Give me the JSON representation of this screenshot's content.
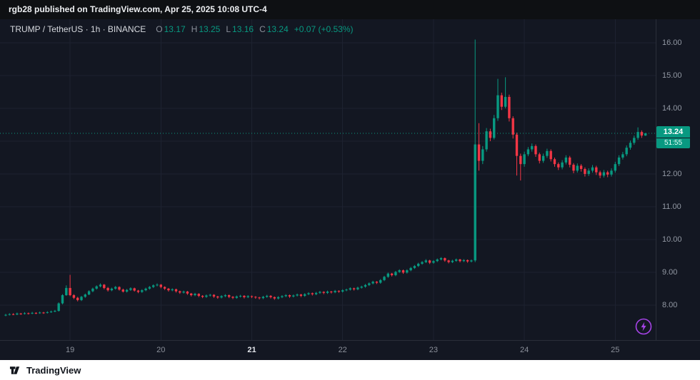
{
  "header": {
    "text": "rgb28 published on TradingView.com, Apr 25, 2025 10:08 UTC-4"
  },
  "legend": {
    "title": "TRUMP / TetherUS · 1h · BINANCE",
    "ohlc": [
      {
        "k": "O",
        "v": "13.17"
      },
      {
        "k": "H",
        "v": "13.25"
      },
      {
        "k": "L",
        "v": "13.16"
      },
      {
        "k": "C",
        "v": "13.24"
      }
    ],
    "change": "+0.07 (+0.53%)"
  },
  "price_axis": {
    "labels": [
      "16.00",
      "15.00",
      "14.00",
      "12.00",
      "11.00",
      "10.00",
      "9.00",
      "8.00"
    ],
    "badge": {
      "price": "13.24",
      "countdown": "51:55"
    }
  },
  "footer": {
    "brand": "TradingView"
  },
  "colors": {
    "up": "#089981",
    "down": "#f23645",
    "flash": "#a743e8",
    "grid": "#1d2230"
  },
  "chart_data": {
    "type": "candlestick",
    "title": "TRUMP / TetherUS · 1h · BINANCE",
    "interval": "1h",
    "ylim": [
      6.93,
      16.72
    ],
    "y_ticks": [
      8,
      9,
      10,
      11,
      12,
      13,
      14,
      15,
      16
    ],
    "x_ticks": [
      {
        "label": "19",
        "i": 17,
        "emphasis": false
      },
      {
        "label": "20",
        "i": 41,
        "emphasis": false
      },
      {
        "label": "21",
        "i": 65,
        "emphasis": true
      },
      {
        "label": "22",
        "i": 89,
        "emphasis": false
      },
      {
        "label": "23",
        "i": 113,
        "emphasis": false
      },
      {
        "label": "24",
        "i": 137,
        "emphasis": false
      },
      {
        "label": "25",
        "i": 161,
        "emphasis": false
      }
    ],
    "last_price": 13.24,
    "candles": [
      [
        7.68,
        7.73,
        7.66,
        7.7
      ],
      [
        7.7,
        7.75,
        7.68,
        7.72
      ],
      [
        7.72,
        7.75,
        7.69,
        7.71
      ],
      [
        7.71,
        7.77,
        7.69,
        7.74
      ],
      [
        7.74,
        7.76,
        7.7,
        7.73
      ],
      [
        7.73,
        7.78,
        7.71,
        7.75
      ],
      [
        7.75,
        7.77,
        7.71,
        7.74
      ],
      [
        7.74,
        7.79,
        7.72,
        7.76
      ],
      [
        7.76,
        7.78,
        7.72,
        7.75
      ],
      [
        7.75,
        7.8,
        7.73,
        7.77
      ],
      [
        7.77,
        7.79,
        7.73,
        7.76
      ],
      [
        7.76,
        7.81,
        7.74,
        7.78
      ],
      [
        7.78,
        7.83,
        7.76,
        7.8
      ],
      [
        7.8,
        7.85,
        7.78,
        7.82
      ],
      [
        7.82,
        8.08,
        7.8,
        8.05
      ],
      [
        8.05,
        8.33,
        8.02,
        8.3
      ],
      [
        8.3,
        8.6,
        8.28,
        8.52
      ],
      [
        8.52,
        8.92,
        8.27,
        8.3
      ],
      [
        8.3,
        8.33,
        8.18,
        8.22
      ],
      [
        8.22,
        8.25,
        8.11,
        8.15
      ],
      [
        8.15,
        8.28,
        8.12,
        8.25
      ],
      [
        8.25,
        8.35,
        8.22,
        8.32
      ],
      [
        8.32,
        8.45,
        8.3,
        8.42
      ],
      [
        8.42,
        8.53,
        8.39,
        8.5
      ],
      [
        8.5,
        8.6,
        8.47,
        8.57
      ],
      [
        8.57,
        8.66,
        8.54,
        8.62
      ],
      [
        8.62,
        8.64,
        8.48,
        8.52
      ],
      [
        8.52,
        8.55,
        8.41,
        8.45
      ],
      [
        8.45,
        8.53,
        8.42,
        8.5
      ],
      [
        8.5,
        8.58,
        8.47,
        8.55
      ],
      [
        8.55,
        8.57,
        8.44,
        8.47
      ],
      [
        8.47,
        8.5,
        8.38,
        8.41
      ],
      [
        8.41,
        8.49,
        8.38,
        8.46
      ],
      [
        8.46,
        8.54,
        8.43,
        8.51
      ],
      [
        8.51,
        8.53,
        8.41,
        8.44
      ],
      [
        8.44,
        8.46,
        8.36,
        8.4
      ],
      [
        8.4,
        8.48,
        8.37,
        8.45
      ],
      [
        8.45,
        8.53,
        8.42,
        8.5
      ],
      [
        8.5,
        8.58,
        8.47,
        8.55
      ],
      [
        8.55,
        8.63,
        8.52,
        8.6
      ],
      [
        8.6,
        8.66,
        8.57,
        8.62
      ],
      [
        8.62,
        8.64,
        8.51,
        8.55
      ],
      [
        8.55,
        8.57,
        8.46,
        8.5
      ],
      [
        8.5,
        8.52,
        8.41,
        8.45
      ],
      [
        8.45,
        8.51,
        8.42,
        8.48
      ],
      [
        8.48,
        8.5,
        8.38,
        8.42
      ],
      [
        8.42,
        8.44,
        8.34,
        8.38
      ],
      [
        8.38,
        8.44,
        8.35,
        8.41
      ],
      [
        8.41,
        8.43,
        8.31,
        8.35
      ],
      [
        8.35,
        8.37,
        8.26,
        8.3
      ],
      [
        8.3,
        8.37,
        8.27,
        8.34
      ],
      [
        8.34,
        8.36,
        8.24,
        8.28
      ],
      [
        8.28,
        8.3,
        8.21,
        8.25
      ],
      [
        8.25,
        8.32,
        8.22,
        8.29
      ],
      [
        8.29,
        8.34,
        8.26,
        8.31
      ],
      [
        8.31,
        8.33,
        8.22,
        8.26
      ],
      [
        8.26,
        8.28,
        8.19,
        8.23
      ],
      [
        8.23,
        8.3,
        8.2,
        8.27
      ],
      [
        8.27,
        8.33,
        8.24,
        8.3
      ],
      [
        8.3,
        8.32,
        8.21,
        8.25
      ],
      [
        8.25,
        8.27,
        8.18,
        8.22
      ],
      [
        8.22,
        8.29,
        8.19,
        8.26
      ],
      [
        8.26,
        8.31,
        8.23,
        8.28
      ],
      [
        8.28,
        8.3,
        8.2,
        8.24
      ],
      [
        8.24,
        8.3,
        8.21,
        8.27
      ],
      [
        8.27,
        8.29,
        8.21,
        8.25
      ],
      [
        8.25,
        8.27,
        8.19,
        8.23
      ],
      [
        8.23,
        8.25,
        8.17,
        8.21
      ],
      [
        8.21,
        8.28,
        8.18,
        8.25
      ],
      [
        8.25,
        8.31,
        8.22,
        8.28
      ],
      [
        8.28,
        8.3,
        8.2,
        8.24
      ],
      [
        8.24,
        8.26,
        8.16,
        8.2
      ],
      [
        8.2,
        8.27,
        8.17,
        8.24
      ],
      [
        8.24,
        8.3,
        8.21,
        8.27
      ],
      [
        8.27,
        8.33,
        8.24,
        8.3
      ],
      [
        8.3,
        8.32,
        8.22,
        8.26
      ],
      [
        8.26,
        8.32,
        8.23,
        8.29
      ],
      [
        8.29,
        8.35,
        8.26,
        8.32
      ],
      [
        8.32,
        8.34,
        8.24,
        8.28
      ],
      [
        8.28,
        8.36,
        8.25,
        8.33
      ],
      [
        8.33,
        8.39,
        8.3,
        8.36
      ],
      [
        8.36,
        8.38,
        8.29,
        8.33
      ],
      [
        8.33,
        8.4,
        8.3,
        8.37
      ],
      [
        8.37,
        8.43,
        8.34,
        8.4
      ],
      [
        8.4,
        8.42,
        8.33,
        8.37
      ],
      [
        8.37,
        8.44,
        8.34,
        8.41
      ],
      [
        8.41,
        8.43,
        8.35,
        8.39
      ],
      [
        8.39,
        8.46,
        8.36,
        8.43
      ],
      [
        8.43,
        8.45,
        8.37,
        8.41
      ],
      [
        8.41,
        8.48,
        8.38,
        8.45
      ],
      [
        8.45,
        8.5,
        8.42,
        8.47
      ],
      [
        8.47,
        8.54,
        8.44,
        8.51
      ],
      [
        8.51,
        8.53,
        8.44,
        8.48
      ],
      [
        8.48,
        8.56,
        8.45,
        8.53
      ],
      [
        8.53,
        8.59,
        8.5,
        8.56
      ],
      [
        8.56,
        8.64,
        8.53,
        8.61
      ],
      [
        8.61,
        8.69,
        8.58,
        8.66
      ],
      [
        8.66,
        8.74,
        8.63,
        8.71
      ],
      [
        8.71,
        8.73,
        8.64,
        8.68
      ],
      [
        8.68,
        8.79,
        8.65,
        8.76
      ],
      [
        8.76,
        8.89,
        8.73,
        8.86
      ],
      [
        8.86,
        8.99,
        8.83,
        8.96
      ],
      [
        8.96,
        8.98,
        8.87,
        8.91
      ],
      [
        8.91,
        9.04,
        8.88,
        9.01
      ],
      [
        9.01,
        9.09,
        8.98,
        9.06
      ],
      [
        9.06,
        9.08,
        8.95,
        8.99
      ],
      [
        8.99,
        9.09,
        8.96,
        9.06
      ],
      [
        9.06,
        9.16,
        9.03,
        9.13
      ],
      [
        9.13,
        9.22,
        9.1,
        9.19
      ],
      [
        9.19,
        9.29,
        9.16,
        9.26
      ],
      [
        9.26,
        9.34,
        9.23,
        9.31
      ],
      [
        9.31,
        9.4,
        9.28,
        9.36
      ],
      [
        9.36,
        9.38,
        9.25,
        9.29
      ],
      [
        9.29,
        9.37,
        9.26,
        9.34
      ],
      [
        9.34,
        9.42,
        9.31,
        9.39
      ],
      [
        9.39,
        9.46,
        9.36,
        9.43
      ],
      [
        9.43,
        9.45,
        9.32,
        9.36
      ],
      [
        9.36,
        9.38,
        9.27,
        9.31
      ],
      [
        9.31,
        9.38,
        9.28,
        9.35
      ],
      [
        9.35,
        9.42,
        9.32,
        9.39
      ],
      [
        9.39,
        9.41,
        9.3,
        9.34
      ],
      [
        9.34,
        9.4,
        9.31,
        9.37
      ],
      [
        9.37,
        9.39,
        9.29,
        9.33
      ],
      [
        9.33,
        9.39,
        9.3,
        9.36
      ],
      [
        9.36,
        16.1,
        9.31,
        12.9
      ],
      [
        12.9,
        13.55,
        12.1,
        12.4
      ],
      [
        12.4,
        12.85,
        12.3,
        12.75
      ],
      [
        12.75,
        13.4,
        12.68,
        13.3
      ],
      [
        13.3,
        13.38,
        13.0,
        13.1
      ],
      [
        13.1,
        13.8,
        13.05,
        13.7
      ],
      [
        13.7,
        14.9,
        13.62,
        14.4
      ],
      [
        14.4,
        14.48,
        13.95,
        14.05
      ],
      [
        14.05,
        14.95,
        14.0,
        14.35
      ],
      [
        14.35,
        14.42,
        13.6,
        13.7
      ],
      [
        13.7,
        13.76,
        13.08,
        13.2
      ],
      [
        13.2,
        13.26,
        11.95,
        12.55
      ],
      [
        12.55,
        12.62,
        11.8,
        12.3
      ],
      [
        12.3,
        12.68,
        12.22,
        12.6
      ],
      [
        12.6,
        12.82,
        12.54,
        12.75
      ],
      [
        12.75,
        12.93,
        12.68,
        12.85
      ],
      [
        12.85,
        12.9,
        12.52,
        12.6
      ],
      [
        12.6,
        12.65,
        12.32,
        12.4
      ],
      [
        12.4,
        12.62,
        12.34,
        12.55
      ],
      [
        12.55,
        12.77,
        12.49,
        12.7
      ],
      [
        12.7,
        12.75,
        12.38,
        12.45
      ],
      [
        12.45,
        12.5,
        12.22,
        12.3
      ],
      [
        12.3,
        12.35,
        12.12,
        12.2
      ],
      [
        12.2,
        12.42,
        12.14,
        12.35
      ],
      [
        12.35,
        12.57,
        12.29,
        12.5
      ],
      [
        12.5,
        12.55,
        12.2,
        12.28
      ],
      [
        12.28,
        12.33,
        12.02,
        12.1
      ],
      [
        12.1,
        12.32,
        12.04,
        12.25
      ],
      [
        12.25,
        12.3,
        12.07,
        12.15
      ],
      [
        12.15,
        12.2,
        11.92,
        12.0
      ],
      [
        12.0,
        12.17,
        11.94,
        12.1
      ],
      [
        12.1,
        12.27,
        12.04,
        12.2
      ],
      [
        12.2,
        12.25,
        11.97,
        12.05
      ],
      [
        12.05,
        12.1,
        11.87,
        11.95
      ],
      [
        11.95,
        12.12,
        11.89,
        12.05
      ],
      [
        12.05,
        12.1,
        11.9,
        11.98
      ],
      [
        11.98,
        12.17,
        11.92,
        12.1
      ],
      [
        12.1,
        12.37,
        12.04,
        12.3
      ],
      [
        12.3,
        12.57,
        12.24,
        12.5
      ],
      [
        12.5,
        12.67,
        12.44,
        12.6
      ],
      [
        12.6,
        12.87,
        12.54,
        12.8
      ],
      [
        12.8,
        13.02,
        12.74,
        12.95
      ],
      [
        12.95,
        13.17,
        12.89,
        13.1
      ],
      [
        13.1,
        13.42,
        13.04,
        13.28
      ],
      [
        13.28,
        13.33,
        13.1,
        13.17
      ],
      [
        13.17,
        13.25,
        13.16,
        13.24
      ]
    ]
  }
}
